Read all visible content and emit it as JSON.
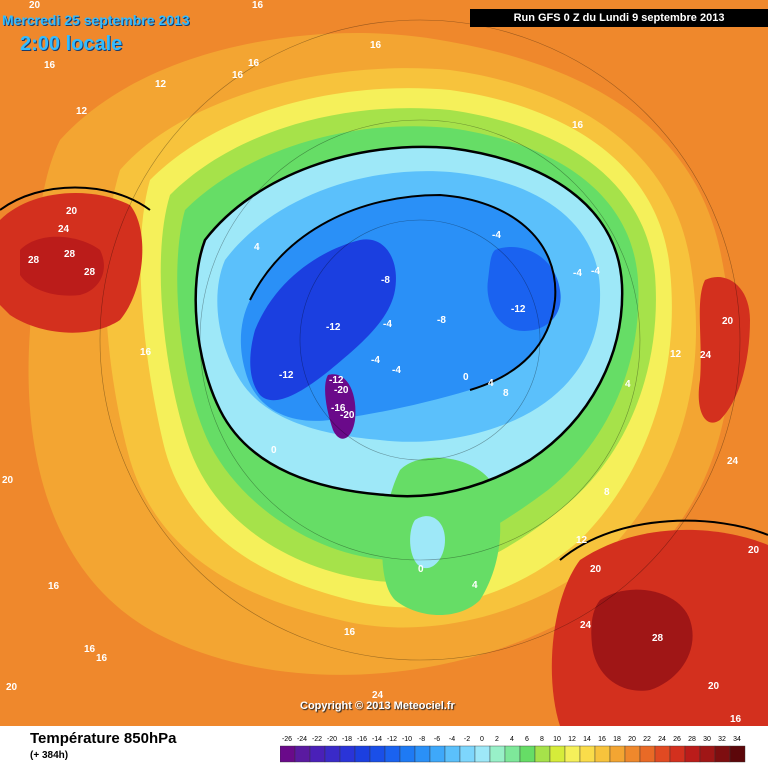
{
  "header": {
    "date": "Mercredi 25 septembre 2013",
    "local_time": "2:00 locale",
    "run": "Run GFS 0 Z du Lundi 9 septembre 2013"
  },
  "copyright": "Copyright © 2013 Meteociel.fr",
  "footer": {
    "title": "Température 850hPa",
    "subtitle": "(+ 384h)"
  },
  "legend": {
    "values": [
      "-26",
      "-24",
      "-22",
      "-20",
      "-18",
      "-16",
      "-14",
      "-12",
      "-10",
      "-8",
      "-6",
      "-4",
      "-2",
      "0",
      "2",
      "4",
      "6",
      "8",
      "10",
      "12",
      "14",
      "16",
      "18",
      "20",
      "22",
      "24",
      "26",
      "28",
      "30",
      "32",
      "34"
    ],
    "colors": [
      "#6a0a8a",
      "#5a1aa0",
      "#4a20b8",
      "#3a2ac8",
      "#2a34d8",
      "#1b3fe0",
      "#1a4fe8",
      "#1a62f0",
      "#1e7af4",
      "#2a90f7",
      "#3ea8fa",
      "#5bc0fb",
      "#7dd6fc",
      "#9ee8f8",
      "#98f0c8",
      "#7ee89a",
      "#66dd66",
      "#a6e24a",
      "#d6ec3a",
      "#f5f05a",
      "#fadc4a",
      "#f7c33c",
      "#f3a532",
      "#ef882c",
      "#e96a26",
      "#e14a22",
      "#d3301e",
      "#bb1c1a",
      "#a01616",
      "#7e0e10",
      "#5c070a"
    ]
  },
  "map_labels": [
    {
      "text": "20",
      "id": "a"
    },
    {
      "text": "16",
      "id": "b"
    },
    {
      "text": "16",
      "id": "c"
    },
    {
      "text": "16",
      "id": "d"
    },
    {
      "text": "12",
      "id": "e"
    },
    {
      "text": "16",
      "id": "f"
    },
    {
      "text": "16",
      "id": "g"
    },
    {
      "text": "12",
      "id": "h"
    },
    {
      "text": "16",
      "id": "i"
    },
    {
      "text": "20",
      "id": "j"
    },
    {
      "text": "24",
      "id": "k"
    },
    {
      "text": "28",
      "id": "l"
    },
    {
      "text": "28",
      "id": "m"
    },
    {
      "text": "28",
      "id": "n"
    },
    {
      "text": "4",
      "id": "o"
    },
    {
      "text": "16",
      "id": "p"
    },
    {
      "text": "-4",
      "id": "q"
    },
    {
      "text": "-4",
      "id": "r"
    },
    {
      "text": "-4",
      "id": "s"
    },
    {
      "text": "-8",
      "id": "t"
    },
    {
      "text": "-12",
      "id": "u"
    },
    {
      "text": "-8",
      "id": "v"
    },
    {
      "text": "-12",
      "id": "w"
    },
    {
      "text": "-4",
      "id": "x"
    },
    {
      "text": "-4",
      "id": "y"
    },
    {
      "text": "-4",
      "id": "z"
    },
    {
      "text": "-12",
      "id": "aa"
    },
    {
      "text": "-12",
      "id": "ab"
    },
    {
      "text": "-20",
      "id": "ac"
    },
    {
      "text": "-16",
      "id": "ad"
    },
    {
      "text": "-20",
      "id": "ae"
    },
    {
      "text": "0",
      "id": "af"
    },
    {
      "text": "0",
      "id": "ag"
    },
    {
      "text": "4",
      "id": "ah"
    },
    {
      "text": "8",
      "id": "ai"
    },
    {
      "text": "12",
      "id": "aj"
    },
    {
      "text": "4",
      "id": "ak"
    },
    {
      "text": "20",
      "id": "al"
    },
    {
      "text": "24",
      "id": "am"
    },
    {
      "text": "24",
      "id": "an"
    },
    {
      "text": "20",
      "id": "ao"
    },
    {
      "text": "8",
      "id": "ap"
    },
    {
      "text": "12",
      "id": "aq"
    },
    {
      "text": "20",
      "id": "ar"
    },
    {
      "text": "0",
      "id": "as"
    },
    {
      "text": "4",
      "id": "at"
    },
    {
      "text": "16",
      "id": "au"
    },
    {
      "text": "24",
      "id": "av"
    },
    {
      "text": "28",
      "id": "aw"
    },
    {
      "text": "20",
      "id": "ax"
    },
    {
      "text": "16",
      "id": "ay"
    },
    {
      "text": "16",
      "id": "az"
    },
    {
      "text": "16",
      "id": "ba"
    },
    {
      "text": "24",
      "id": "bb"
    },
    {
      "text": "20",
      "id": "bc"
    },
    {
      "text": "16",
      "id": "bd"
    },
    {
      "text": "20",
      "id": "be"
    }
  ]
}
